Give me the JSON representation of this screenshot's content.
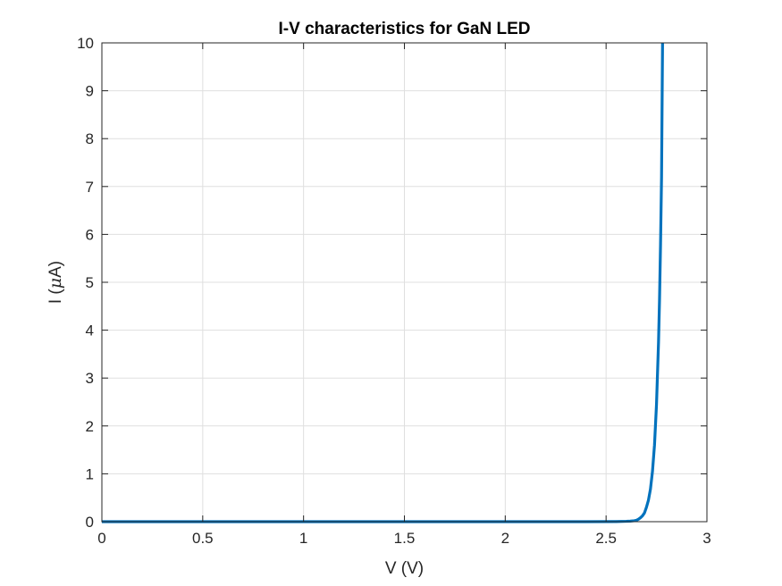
{
  "chart_data": {
    "type": "line",
    "title": "I-V characteristics for GaN LED",
    "xlabel": "V (V)",
    "ylabel_prefix": "I (",
    "ylabel_symbol": "μ",
    "ylabel_suffix": "A)",
    "xlim": [
      0,
      3
    ],
    "ylim": [
      0,
      10
    ],
    "x_ticks": [
      0,
      0.5,
      1,
      1.5,
      2,
      2.5,
      3
    ],
    "x_tick_labels": [
      "0",
      "0.5",
      "1",
      "1.5",
      "2",
      "2.5",
      "3"
    ],
    "y_ticks": [
      0,
      1,
      2,
      3,
      4,
      5,
      6,
      7,
      8,
      9,
      10
    ],
    "y_tick_labels": [
      "0",
      "1",
      "2",
      "3",
      "4",
      "5",
      "6",
      "7",
      "8",
      "9",
      "10"
    ],
    "grid": true,
    "series": [
      {
        "color": "#0072bd",
        "x": [
          0,
          0.5,
          1.0,
          1.5,
          2.0,
          2.4,
          2.55,
          2.6,
          2.62,
          2.64,
          2.65,
          2.66,
          2.67,
          2.68,
          2.69,
          2.7,
          2.71,
          2.72,
          2.73,
          2.74,
          2.75,
          2.76,
          2.765,
          2.77,
          2.775,
          2.78
        ],
        "y": [
          0,
          0,
          0,
          0,
          0,
          0.0002,
          0.003,
          0.008,
          0.012,
          0.02,
          0.03,
          0.05,
          0.08,
          0.12,
          0.18,
          0.3,
          0.45,
          0.68,
          1.05,
          1.6,
          2.45,
          3.75,
          4.65,
          5.8,
          7.2,
          10.0
        ]
      }
    ]
  }
}
